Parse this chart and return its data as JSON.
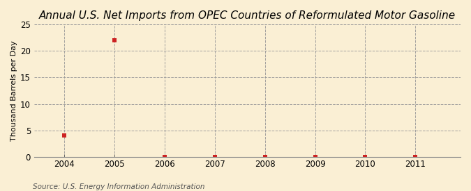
{
  "title": "Annual U.S. Net Imports from OPEC Countries of Reformulated Motor Gasoline",
  "ylabel": "Thousand Barrels per Day",
  "source": "Source: U.S. Energy Information Administration",
  "years": [
    2004,
    2005,
    2006,
    2007,
    2008,
    2009,
    2010,
    2011
  ],
  "values": [
    4.0,
    22.0,
    0.0,
    0.0,
    0.0,
    0.0,
    0.0,
    0.0
  ],
  "xlim": [
    2003.4,
    2011.9
  ],
  "ylim": [
    0,
    25
  ],
  "yticks": [
    0,
    5,
    10,
    15,
    20,
    25
  ],
  "xticks": [
    2004,
    2005,
    2006,
    2007,
    2008,
    2009,
    2010,
    2011
  ],
  "marker_color": "#cc2222",
  "marker": "s",
  "marker_size": 4,
  "bg_color": "#faefd4",
  "plot_bg_color": "#faefd4",
  "grid_color": "#999999",
  "title_fontsize": 11,
  "label_fontsize": 8,
  "tick_fontsize": 8.5,
  "source_fontsize": 7.5
}
